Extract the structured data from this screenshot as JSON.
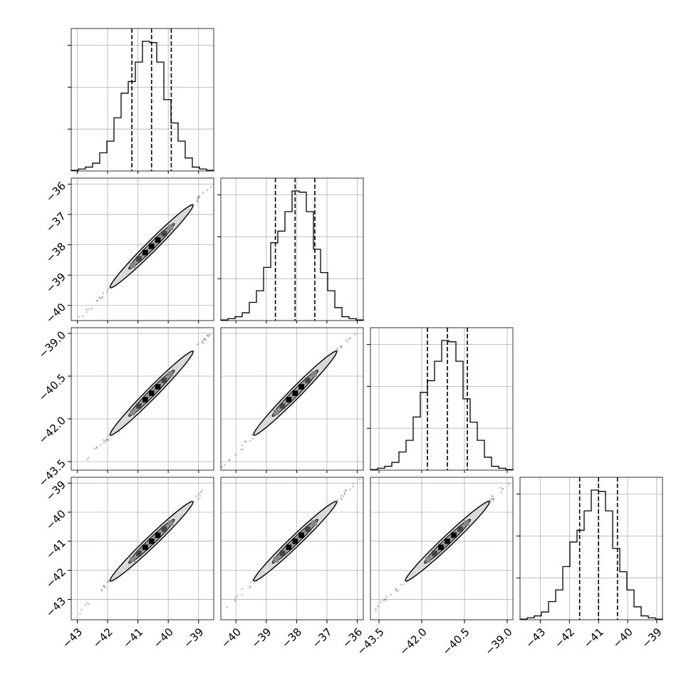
{
  "chart_data": {
    "type": "corner",
    "title": "",
    "grid": true,
    "parameters": [
      {
        "index": 0,
        "range": [
          -43.2,
          -38.5
        ],
        "tick_values": [
          -43,
          -42,
          -41,
          -40,
          -39
        ],
        "tick_labels": [
          "−43",
          "−42",
          "−41",
          "−40",
          "−39"
        ],
        "quantiles": [
          -41.2,
          -40.55,
          -39.9
        ],
        "hist_counts": [
          0.5,
          1.5,
          3,
          6,
          14,
          23,
          41,
          60,
          69,
          84,
          100,
          99,
          84,
          55,
          37,
          23,
          10,
          3,
          1.5,
          0.5
        ]
      },
      {
        "index": 1,
        "range": [
          -40.5,
          -35.8
        ],
        "tick_values": [
          -40,
          -39,
          -38,
          -37,
          -36
        ],
        "tick_labels": [
          "−40",
          "−39",
          "−38",
          "−37",
          "−36"
        ],
        "quantiles": [
          -38.7,
          -38.05,
          -37.4
        ],
        "hist_counts": [
          0.5,
          1.5,
          3,
          6,
          14,
          23,
          41,
          60,
          69,
          84,
          100,
          99,
          84,
          55,
          37,
          23,
          10,
          3,
          1.5,
          0.5
        ]
      },
      {
        "index": 2,
        "range": [
          -43.8,
          -38.8
        ],
        "tick_values": [
          -43.5,
          -42.0,
          -40.5,
          -39.0
        ],
        "tick_labels": [
          "−43.5",
          "−42.0",
          "−40.5",
          "−39.0"
        ],
        "quantiles": [
          -41.8,
          -41.1,
          -40.4
        ],
        "hist_counts": [
          0.5,
          1.5,
          3,
          6,
          14,
          23,
          41,
          60,
          69,
          84,
          100,
          99,
          84,
          55,
          37,
          23,
          10,
          3,
          1.5,
          0.5
        ]
      },
      {
        "index": 3,
        "range": [
          -43.7,
          -38.8
        ],
        "tick_values": [
          -43,
          -42,
          -41,
          -40,
          -39
        ],
        "tick_labels": [
          "−43",
          "−42",
          "−41",
          "−40",
          "−39"
        ],
        "quantiles": [
          -41.65,
          -41.0,
          -40.35
        ],
        "hist_counts": [
          0.5,
          1.5,
          3,
          6,
          14,
          23,
          41,
          60,
          69,
          84,
          100,
          99,
          84,
          55,
          37,
          23,
          10,
          3,
          1.5,
          0.5
        ]
      }
    ],
    "pairs": [
      {
        "x_param": 0,
        "y_param": 1
      },
      {
        "x_param": 0,
        "y_param": 2
      },
      {
        "x_param": 0,
        "y_param": 3
      },
      {
        "x_param": 1,
        "y_param": 2
      },
      {
        "x_param": 1,
        "y_param": 3
      },
      {
        "x_param": 2,
        "y_param": 3
      }
    ],
    "colors": {
      "line": "#000000",
      "grid": "#b0b0b0",
      "points": "#555555",
      "contour_fill": "#d9d9d9"
    }
  }
}
